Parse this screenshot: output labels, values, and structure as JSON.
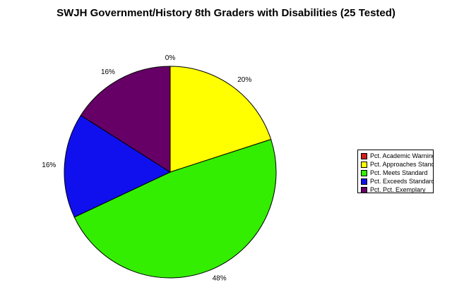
{
  "chart_data": {
    "type": "pie",
    "title": "SWJH Government/History 8th Graders with Disabilities (25 Tested)",
    "categories": [
      "Pct. Academic Warning",
      "Pct. Approaches Standard",
      "Pct. Meets Standard",
      "Pct. Exceeds Standard",
      "Pct. Pct. Exemplary"
    ],
    "values": [
      0,
      20,
      48,
      16,
      16
    ],
    "labels": [
      "0%",
      "20%",
      "48%",
      "16%",
      "16%"
    ],
    "colors": [
      "#d11f1f",
      "#ffff00",
      "#33ee00",
      "#1010ee",
      "#660066"
    ],
    "legend_position": "right"
  }
}
